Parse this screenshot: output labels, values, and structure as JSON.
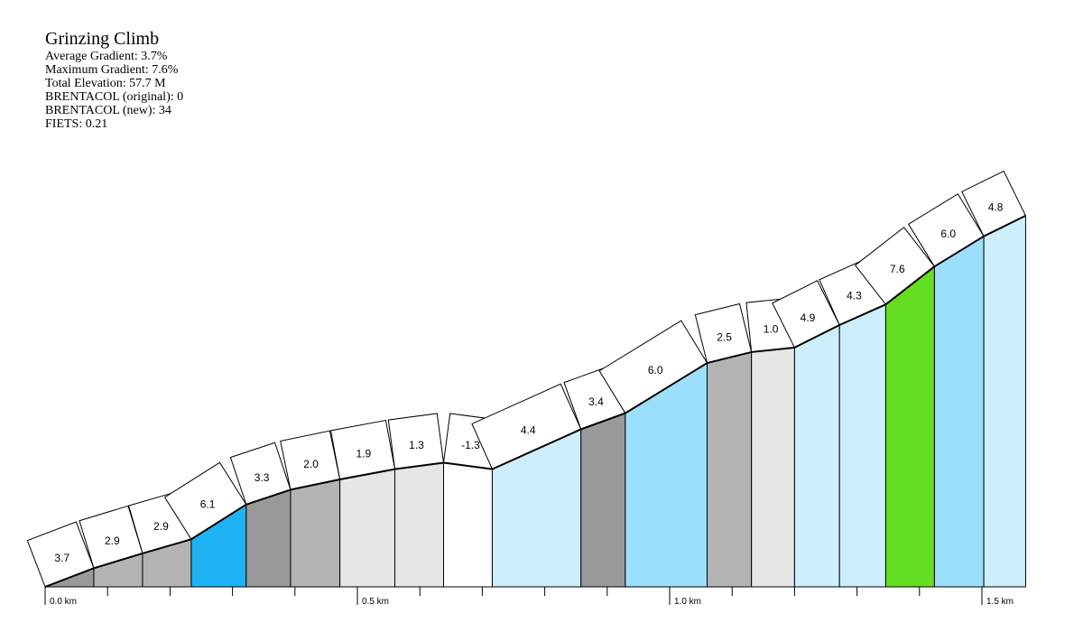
{
  "title_block": {
    "title": "Grinzing Climb",
    "stats": [
      "Average Gradient: 3.7%",
      "Maximum Gradient: 7.6%",
      "Total Elevation: 57.7 M",
      "BRENTACOL (original): 0",
      "BRENTACOL (new): 34",
      "FIETS: 0.21"
    ]
  },
  "chart_data": {
    "type": "area",
    "xlabel": "",
    "ylabel": "",
    "x_unit": "km",
    "xlim": [
      0,
      1.57
    ],
    "ylim": [
      0,
      60
    ],
    "x_tick_labels": [
      {
        "value": 0.0,
        "label": "0.0 km"
      },
      {
        "value": 0.5,
        "label": "0.5 km"
      },
      {
        "value": 1.0,
        "label": "1.0 km"
      },
      {
        "value": 1.5,
        "label": "1.5 km"
      }
    ],
    "minor_tick_step_km": 0.1,
    "segments": [
      {
        "start_km": 0.0,
        "end_km": 0.078,
        "start_elev": 0.0,
        "end_elev": 2.9,
        "gradient": "3.7",
        "color": "#999999"
      },
      {
        "start_km": 0.078,
        "end_km": 0.156,
        "start_elev": 2.9,
        "end_elev": 5.2,
        "gradient": "2.9",
        "color": "#b3b3b3"
      },
      {
        "start_km": 0.156,
        "end_km": 0.234,
        "start_elev": 5.2,
        "end_elev": 7.4,
        "gradient": "2.9",
        "color": "#b3b3b3"
      },
      {
        "start_km": 0.234,
        "end_km": 0.322,
        "start_elev": 7.4,
        "end_elev": 12.8,
        "gradient": "6.1",
        "color": "#1fb3f5"
      },
      {
        "start_km": 0.322,
        "end_km": 0.393,
        "start_elev": 12.8,
        "end_elev": 15.1,
        "gradient": "3.3",
        "color": "#999999"
      },
      {
        "start_km": 0.393,
        "end_km": 0.472,
        "start_elev": 15.1,
        "end_elev": 16.7,
        "gradient": "2.0",
        "color": "#b3b3b3"
      },
      {
        "start_km": 0.472,
        "end_km": 0.56,
        "start_elev": 16.7,
        "end_elev": 18.3,
        "gradient": "1.9",
        "color": "#e6e6e6"
      },
      {
        "start_km": 0.56,
        "end_km": 0.638,
        "start_elev": 18.3,
        "end_elev": 19.3,
        "gradient": "1.3",
        "color": "#e6e6e6"
      },
      {
        "start_km": 0.638,
        "end_km": 0.716,
        "start_elev": 19.3,
        "end_elev": 18.3,
        "gradient": "-1.3",
        "color": "#ffffff"
      },
      {
        "start_km": 0.716,
        "end_km": 0.858,
        "start_elev": 18.3,
        "end_elev": 24.5,
        "gradient": "4.4",
        "color": "#cdeefd"
      },
      {
        "start_km": 0.858,
        "end_km": 0.929,
        "start_elev": 24.5,
        "end_elev": 27.0,
        "gradient": "3.4",
        "color": "#999999"
      },
      {
        "start_km": 0.929,
        "end_km": 1.06,
        "start_elev": 27.0,
        "end_elev": 34.8,
        "gradient": "6.0",
        "color": "#9bdffc"
      },
      {
        "start_km": 1.06,
        "end_km": 1.131,
        "start_elev": 34.8,
        "end_elev": 36.5,
        "gradient": "2.5",
        "color": "#b3b3b3"
      },
      {
        "start_km": 1.131,
        "end_km": 1.2,
        "start_elev": 36.5,
        "end_elev": 37.2,
        "gradient": "1.0",
        "color": "#e6e6e6"
      },
      {
        "start_km": 1.2,
        "end_km": 1.272,
        "start_elev": 37.2,
        "end_elev": 40.7,
        "gradient": "4.9",
        "color": "#cdeefd"
      },
      {
        "start_km": 1.272,
        "end_km": 1.346,
        "start_elev": 40.7,
        "end_elev": 43.9,
        "gradient": "4.3",
        "color": "#cdeefd"
      },
      {
        "start_km": 1.346,
        "end_km": 1.424,
        "start_elev": 43.9,
        "end_elev": 49.8,
        "gradient": "7.6",
        "color": "#63de20"
      },
      {
        "start_km": 1.424,
        "end_km": 1.503,
        "start_elev": 49.8,
        "end_elev": 54.5,
        "gradient": "6.0",
        "color": "#9bdffc"
      },
      {
        "start_km": 1.503,
        "end_km": 1.57,
        "start_elev": 54.5,
        "end_elev": 57.7,
        "gradient": "4.8",
        "color": "#cdeefd"
      }
    ]
  }
}
